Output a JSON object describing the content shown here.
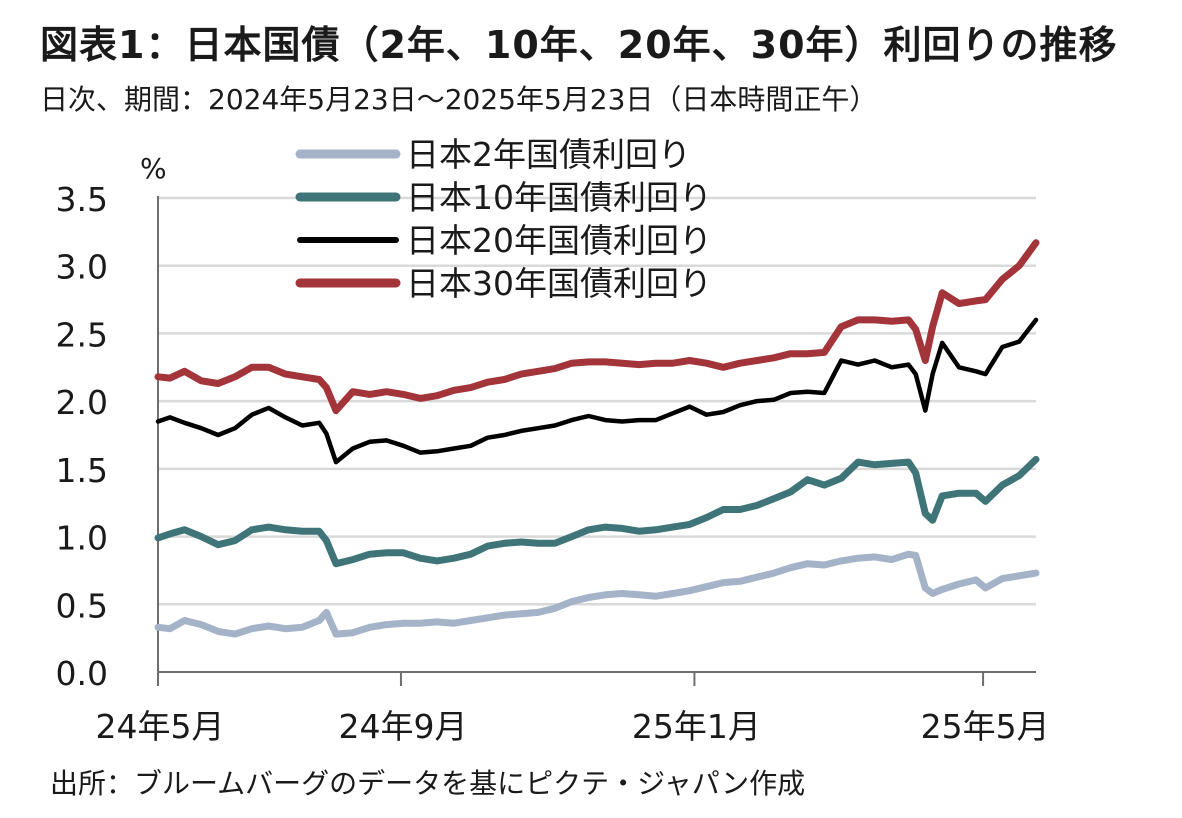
{
  "header": {
    "title": "図表1：日本国債（2年、10年、20年、30年）利回りの推移",
    "subtitle": "日次、期間：2024年5月23日～2025年5月23日（日本時間正午）"
  },
  "footer": {
    "source": "出所：ブルームバーグのデータを基にピクテ・ジャパン作成"
  },
  "chart_data": {
    "type": "line",
    "title": "図表1：日本国債（2年、10年、20年、30年）利回りの推移",
    "subtitle": "日次、期間：2024年5月23日～2025年5月23日（日本時間正午）",
    "y_unit": "%",
    "ylim": [
      0.0,
      3.5
    ],
    "yticks": [
      "0.0",
      "0.5",
      "1.0",
      "1.5",
      "2.0",
      "2.5",
      "3.0",
      "3.5"
    ],
    "xlim": [
      "2024-05-23",
      "2025-05-23"
    ],
    "xticks": [
      {
        "date": "2024-05-23",
        "label": "24年5月"
      },
      {
        "date": "2024-09-01",
        "label": "24年9月"
      },
      {
        "date": "2025-01-01",
        "label": "25年1月"
      },
      {
        "date": "2025-05-01",
        "label": "25年5月"
      }
    ],
    "grid": "horizontal",
    "legend": "top",
    "series": [
      {
        "name": "日本2年国債利回り",
        "color": "#a4b3c8",
        "stroke": "thick",
        "points": [
          [
            "2024-05-23",
            0.33
          ],
          [
            "2024-05-28",
            0.32
          ],
          [
            "2024-06-03",
            0.38
          ],
          [
            "2024-06-10",
            0.35
          ],
          [
            "2024-06-17",
            0.3
          ],
          [
            "2024-06-24",
            0.28
          ],
          [
            "2024-07-01",
            0.32
          ],
          [
            "2024-07-08",
            0.34
          ],
          [
            "2024-07-15",
            0.32
          ],
          [
            "2024-07-22",
            0.33
          ],
          [
            "2024-07-29",
            0.38
          ],
          [
            "2024-08-01",
            0.44
          ],
          [
            "2024-08-05",
            0.28
          ],
          [
            "2024-08-12",
            0.29
          ],
          [
            "2024-08-19",
            0.33
          ],
          [
            "2024-08-26",
            0.35
          ],
          [
            "2024-09-02",
            0.36
          ],
          [
            "2024-09-09",
            0.36
          ],
          [
            "2024-09-16",
            0.37
          ],
          [
            "2024-09-23",
            0.36
          ],
          [
            "2024-09-30",
            0.38
          ],
          [
            "2024-10-07",
            0.4
          ],
          [
            "2024-10-14",
            0.42
          ],
          [
            "2024-10-21",
            0.43
          ],
          [
            "2024-10-28",
            0.44
          ],
          [
            "2024-11-04",
            0.47
          ],
          [
            "2024-11-11",
            0.52
          ],
          [
            "2024-11-18",
            0.55
          ],
          [
            "2024-11-25",
            0.57
          ],
          [
            "2024-12-02",
            0.58
          ],
          [
            "2024-12-09",
            0.57
          ],
          [
            "2024-12-16",
            0.56
          ],
          [
            "2024-12-23",
            0.58
          ],
          [
            "2024-12-30",
            0.6
          ],
          [
            "2025-01-06",
            0.63
          ],
          [
            "2025-01-13",
            0.66
          ],
          [
            "2025-01-20",
            0.67
          ],
          [
            "2025-01-27",
            0.7
          ],
          [
            "2025-02-03",
            0.73
          ],
          [
            "2025-02-10",
            0.77
          ],
          [
            "2025-02-17",
            0.8
          ],
          [
            "2025-02-24",
            0.79
          ],
          [
            "2025-03-03",
            0.82
          ],
          [
            "2025-03-10",
            0.84
          ],
          [
            "2025-03-17",
            0.85
          ],
          [
            "2025-03-24",
            0.83
          ],
          [
            "2025-03-31",
            0.87
          ],
          [
            "2025-04-03",
            0.86
          ],
          [
            "2025-04-07",
            0.62
          ],
          [
            "2025-04-10",
            0.58
          ],
          [
            "2025-04-14",
            0.61
          ],
          [
            "2025-04-21",
            0.65
          ],
          [
            "2025-04-28",
            0.68
          ],
          [
            "2025-05-02",
            0.62
          ],
          [
            "2025-05-09",
            0.69
          ],
          [
            "2025-05-16",
            0.71
          ],
          [
            "2025-05-23",
            0.73
          ]
        ]
      },
      {
        "name": "日本10年国債利回り",
        "color": "#3f7478",
        "stroke": "thick",
        "points": [
          [
            "2024-05-23",
            0.99
          ],
          [
            "2024-05-28",
            1.02
          ],
          [
            "2024-06-03",
            1.05
          ],
          [
            "2024-06-10",
            1.0
          ],
          [
            "2024-06-17",
            0.94
          ],
          [
            "2024-06-24",
            0.97
          ],
          [
            "2024-07-01",
            1.05
          ],
          [
            "2024-07-08",
            1.07
          ],
          [
            "2024-07-15",
            1.05
          ],
          [
            "2024-07-22",
            1.04
          ],
          [
            "2024-07-29",
            1.04
          ],
          [
            "2024-08-01",
            0.97
          ],
          [
            "2024-08-05",
            0.8
          ],
          [
            "2024-08-12",
            0.83
          ],
          [
            "2024-08-19",
            0.87
          ],
          [
            "2024-08-26",
            0.88
          ],
          [
            "2024-09-02",
            0.88
          ],
          [
            "2024-09-09",
            0.84
          ],
          [
            "2024-09-16",
            0.82
          ],
          [
            "2024-09-23",
            0.84
          ],
          [
            "2024-09-30",
            0.87
          ],
          [
            "2024-10-07",
            0.93
          ],
          [
            "2024-10-14",
            0.95
          ],
          [
            "2024-10-21",
            0.96
          ],
          [
            "2024-10-28",
            0.95
          ],
          [
            "2024-11-04",
            0.95
          ],
          [
            "2024-11-11",
            1.0
          ],
          [
            "2024-11-18",
            1.05
          ],
          [
            "2024-11-25",
            1.07
          ],
          [
            "2024-12-02",
            1.06
          ],
          [
            "2024-12-09",
            1.04
          ],
          [
            "2024-12-16",
            1.05
          ],
          [
            "2024-12-23",
            1.07
          ],
          [
            "2024-12-30",
            1.09
          ],
          [
            "2025-01-06",
            1.14
          ],
          [
            "2025-01-13",
            1.2
          ],
          [
            "2025-01-20",
            1.2
          ],
          [
            "2025-01-27",
            1.23
          ],
          [
            "2025-02-03",
            1.28
          ],
          [
            "2025-02-10",
            1.33
          ],
          [
            "2025-02-17",
            1.42
          ],
          [
            "2025-02-24",
            1.38
          ],
          [
            "2025-03-03",
            1.43
          ],
          [
            "2025-03-10",
            1.55
          ],
          [
            "2025-03-17",
            1.53
          ],
          [
            "2025-03-24",
            1.54
          ],
          [
            "2025-03-31",
            1.55
          ],
          [
            "2025-04-03",
            1.47
          ],
          [
            "2025-04-07",
            1.17
          ],
          [
            "2025-04-10",
            1.12
          ],
          [
            "2025-04-14",
            1.3
          ],
          [
            "2025-04-21",
            1.32
          ],
          [
            "2025-04-28",
            1.32
          ],
          [
            "2025-05-02",
            1.26
          ],
          [
            "2025-05-09",
            1.38
          ],
          [
            "2025-05-16",
            1.45
          ],
          [
            "2025-05-23",
            1.57
          ]
        ]
      },
      {
        "name": "日本20年国債利回り",
        "color": "#000000",
        "stroke": "medium",
        "points": [
          [
            "2024-05-23",
            1.85
          ],
          [
            "2024-05-28",
            1.88
          ],
          [
            "2024-06-03",
            1.84
          ],
          [
            "2024-06-10",
            1.8
          ],
          [
            "2024-06-17",
            1.75
          ],
          [
            "2024-06-24",
            1.8
          ],
          [
            "2024-07-01",
            1.9
          ],
          [
            "2024-07-08",
            1.95
          ],
          [
            "2024-07-15",
            1.88
          ],
          [
            "2024-07-22",
            1.82
          ],
          [
            "2024-07-29",
            1.84
          ],
          [
            "2024-08-01",
            1.76
          ],
          [
            "2024-08-05",
            1.55
          ],
          [
            "2024-08-12",
            1.65
          ],
          [
            "2024-08-19",
            1.7
          ],
          [
            "2024-08-26",
            1.71
          ],
          [
            "2024-09-02",
            1.67
          ],
          [
            "2024-09-09",
            1.62
          ],
          [
            "2024-09-16",
            1.63
          ],
          [
            "2024-09-23",
            1.65
          ],
          [
            "2024-09-30",
            1.67
          ],
          [
            "2024-10-07",
            1.73
          ],
          [
            "2024-10-14",
            1.75
          ],
          [
            "2024-10-21",
            1.78
          ],
          [
            "2024-10-28",
            1.8
          ],
          [
            "2024-11-04",
            1.82
          ],
          [
            "2024-11-11",
            1.86
          ],
          [
            "2024-11-18",
            1.89
          ],
          [
            "2024-11-25",
            1.86
          ],
          [
            "2024-12-02",
            1.85
          ],
          [
            "2024-12-09",
            1.86
          ],
          [
            "2024-12-16",
            1.86
          ],
          [
            "2024-12-23",
            1.91
          ],
          [
            "2024-12-30",
            1.96
          ],
          [
            "2025-01-06",
            1.9
          ],
          [
            "2025-01-13",
            1.92
          ],
          [
            "2025-01-20",
            1.97
          ],
          [
            "2025-01-27",
            2.0
          ],
          [
            "2025-02-03",
            2.01
          ],
          [
            "2025-02-10",
            2.06
          ],
          [
            "2025-02-17",
            2.07
          ],
          [
            "2025-02-24",
            2.06
          ],
          [
            "2025-03-03",
            2.3
          ],
          [
            "2025-03-10",
            2.27
          ],
          [
            "2025-03-17",
            2.3
          ],
          [
            "2025-03-24",
            2.25
          ],
          [
            "2025-03-31",
            2.27
          ],
          [
            "2025-04-03",
            2.2
          ],
          [
            "2025-04-07",
            1.93
          ],
          [
            "2025-04-10",
            2.2
          ],
          [
            "2025-04-14",
            2.43
          ],
          [
            "2025-04-21",
            2.25
          ],
          [
            "2025-04-28",
            2.22
          ],
          [
            "2025-05-02",
            2.2
          ],
          [
            "2025-05-09",
            2.4
          ],
          [
            "2025-05-16",
            2.44
          ],
          [
            "2025-05-23",
            2.6
          ]
        ]
      },
      {
        "name": "日本30年国債利回り",
        "color": "#a3343a",
        "stroke": "thick",
        "points": [
          [
            "2024-05-23",
            2.18
          ],
          [
            "2024-05-28",
            2.17
          ],
          [
            "2024-06-03",
            2.22
          ],
          [
            "2024-06-10",
            2.15
          ],
          [
            "2024-06-17",
            2.13
          ],
          [
            "2024-06-24",
            2.18
          ],
          [
            "2024-07-01",
            2.25
          ],
          [
            "2024-07-08",
            2.25
          ],
          [
            "2024-07-15",
            2.2
          ],
          [
            "2024-07-22",
            2.18
          ],
          [
            "2024-07-29",
            2.16
          ],
          [
            "2024-08-01",
            2.1
          ],
          [
            "2024-08-05",
            1.93
          ],
          [
            "2024-08-12",
            2.07
          ],
          [
            "2024-08-19",
            2.05
          ],
          [
            "2024-08-26",
            2.07
          ],
          [
            "2024-09-02",
            2.05
          ],
          [
            "2024-09-09",
            2.02
          ],
          [
            "2024-09-16",
            2.04
          ],
          [
            "2024-09-23",
            2.08
          ],
          [
            "2024-09-30",
            2.1
          ],
          [
            "2024-10-07",
            2.14
          ],
          [
            "2024-10-14",
            2.16
          ],
          [
            "2024-10-21",
            2.2
          ],
          [
            "2024-10-28",
            2.22
          ],
          [
            "2024-11-04",
            2.24
          ],
          [
            "2024-11-11",
            2.28
          ],
          [
            "2024-11-18",
            2.29
          ],
          [
            "2024-11-25",
            2.29
          ],
          [
            "2024-12-02",
            2.28
          ],
          [
            "2024-12-09",
            2.27
          ],
          [
            "2024-12-16",
            2.28
          ],
          [
            "2024-12-23",
            2.28
          ],
          [
            "2024-12-30",
            2.3
          ],
          [
            "2025-01-06",
            2.28
          ],
          [
            "2025-01-13",
            2.25
          ],
          [
            "2025-01-20",
            2.28
          ],
          [
            "2025-01-27",
            2.3
          ],
          [
            "2025-02-03",
            2.32
          ],
          [
            "2025-02-10",
            2.35
          ],
          [
            "2025-02-17",
            2.35
          ],
          [
            "2025-02-24",
            2.36
          ],
          [
            "2025-03-03",
            2.55
          ],
          [
            "2025-03-10",
            2.6
          ],
          [
            "2025-03-17",
            2.6
          ],
          [
            "2025-03-24",
            2.59
          ],
          [
            "2025-03-31",
            2.6
          ],
          [
            "2025-04-03",
            2.53
          ],
          [
            "2025-04-07",
            2.3
          ],
          [
            "2025-04-10",
            2.55
          ],
          [
            "2025-04-14",
            2.8
          ],
          [
            "2025-04-21",
            2.72
          ],
          [
            "2025-04-28",
            2.74
          ],
          [
            "2025-05-02",
            2.75
          ],
          [
            "2025-05-09",
            2.9
          ],
          [
            "2025-05-16",
            3.0
          ],
          [
            "2025-05-23",
            3.17
          ]
        ]
      }
    ]
  }
}
